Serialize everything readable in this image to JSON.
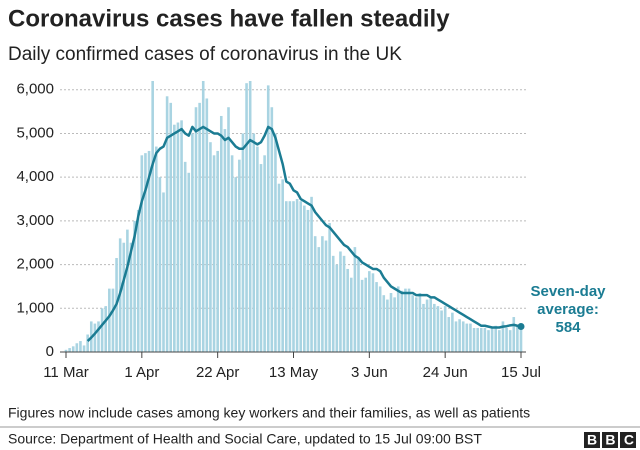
{
  "chart_data": {
    "type": "bar-line",
    "title": "Coronavirus cases have fallen steadily",
    "subtitle": "Daily confirmed cases of coronavirus in the UK",
    "categories": [
      "11 Mar",
      null,
      null,
      null,
      null,
      null,
      null,
      null,
      null,
      null,
      null,
      null,
      null,
      null,
      null,
      null,
      null,
      null,
      null,
      null,
      null,
      "1 Apr",
      null,
      null,
      null,
      null,
      null,
      null,
      null,
      null,
      null,
      null,
      null,
      null,
      null,
      null,
      null,
      null,
      null,
      null,
      null,
      null,
      "22 Apr",
      null,
      null,
      null,
      null,
      null,
      null,
      null,
      null,
      null,
      null,
      null,
      null,
      null,
      null,
      null,
      null,
      null,
      null,
      null,
      null,
      "13 May",
      null,
      null,
      null,
      null,
      null,
      null,
      null,
      null,
      null,
      null,
      null,
      null,
      null,
      null,
      null,
      null,
      null,
      null,
      null,
      null,
      "3 Jun",
      null,
      null,
      null,
      null,
      null,
      null,
      null,
      null,
      null,
      null,
      null,
      null,
      null,
      null,
      null,
      null,
      null,
      null,
      null,
      null,
      "24 Jun",
      null,
      null,
      null,
      null,
      null,
      null,
      null,
      null,
      null,
      null,
      null,
      null,
      null,
      null,
      null,
      null,
      null,
      null,
      null,
      null,
      "15 Jul"
    ],
    "series": [
      {
        "type": "bar",
        "color": "#a9d4e2",
        "values": [
          50,
          90,
          130,
          200,
          250,
          150,
          400,
          700,
          650,
          700,
          1000,
          1050,
          1450,
          1450,
          2150,
          2600,
          2500,
          2800,
          2500,
          3000,
          3250,
          4500,
          4550,
          4600,
          6200,
          4700,
          4000,
          3650,
          5850,
          5700,
          5200,
          5250,
          5300,
          4350,
          4100,
          5000,
          5600,
          5700,
          6200,
          5800,
          4800,
          4500,
          4600,
          5400,
          5100,
          5600,
          4500,
          4000,
          4400,
          5000,
          6150,
          6200,
          5000,
          4700,
          4300,
          4500,
          6100,
          5600,
          5000,
          3850,
          3950,
          3450,
          3450,
          3450,
          3500,
          3450,
          3350,
          3250,
          3550,
          2650,
          2400,
          2650,
          2550,
          2950,
          2200,
          2000,
          2300,
          2200,
          1900,
          1700,
          2400,
          2150,
          1650,
          1700,
          1850,
          1800,
          1600,
          1500,
          1300,
          1200,
          1350,
          1250,
          1500,
          1400,
          1450,
          1450,
          1300,
          1250,
          1350,
          1100,
          1200,
          1250,
          1100,
          1050,
          950,
          1050,
          800,
          900,
          700,
          750,
          700,
          650,
          650,
          550,
          550,
          550,
          550,
          500,
          550,
          600,
          500,
          700,
          550,
          500,
          800,
          600,
          550
        ]
      },
      {
        "type": "line",
        "color": "#1b7c93",
        "values": [
          null,
          null,
          null,
          null,
          null,
          null,
          250,
          330,
          420,
          520,
          620,
          720,
          820,
          950,
          1100,
          1350,
          1650,
          1950,
          2300,
          2650,
          3100,
          3450,
          3700,
          4000,
          4300,
          4550,
          4650,
          4700,
          4900,
          4950,
          5000,
          5050,
          5100,
          5000,
          4950,
          5150,
          5050,
          5100,
          5150,
          5100,
          5050,
          5000,
          5000,
          4950,
          4850,
          4900,
          4800,
          4700,
          4650,
          4650,
          4750,
          4850,
          4800,
          4750,
          4800,
          4950,
          5150,
          5100,
          4900,
          4600,
          4300,
          3900,
          3850,
          3700,
          3650,
          3500,
          3450,
          3400,
          3350,
          3200,
          3100,
          3000,
          2900,
          2850,
          2750,
          2650,
          2550,
          2450,
          2400,
          2300,
          2200,
          2150,
          2050,
          2000,
          1950,
          1900,
          1900,
          1850,
          1700,
          1600,
          1500,
          1450,
          1400,
          1350,
          1350,
          1350,
          1350,
          1300,
          1300,
          1300,
          1300,
          1250,
          1250,
          1200,
          1150,
          1100,
          1050,
          1000,
          950,
          900,
          850,
          800,
          750,
          700,
          650,
          600,
          600,
          580,
          560,
          560,
          560,
          580,
          590,
          610,
          620,
          600,
          584
        ]
      }
    ],
    "annotation": [
      "Seven-day",
      "average:"
    ],
    "ylim": [
      0,
      6200
    ],
    "yticks": [
      0,
      {
        "value": 1000,
        "label": "1,000"
      },
      {
        "value": 2000,
        "label": "2,000"
      },
      {
        "value": 3000,
        "label": "3,000"
      },
      {
        "value": 4000,
        "label": "4,000"
      },
      {
        "value": 5000,
        "label": "5,000"
      },
      {
        "value": 6000,
        "label": "6,000"
      }
    ],
    "grid": true,
    "note": "Figures now include cases among key workers and their families, as well as patients",
    "source": "Source: Department of Health and Social Care, updated to 15 Jul 09:00 BST",
    "logo": "BBC"
  }
}
